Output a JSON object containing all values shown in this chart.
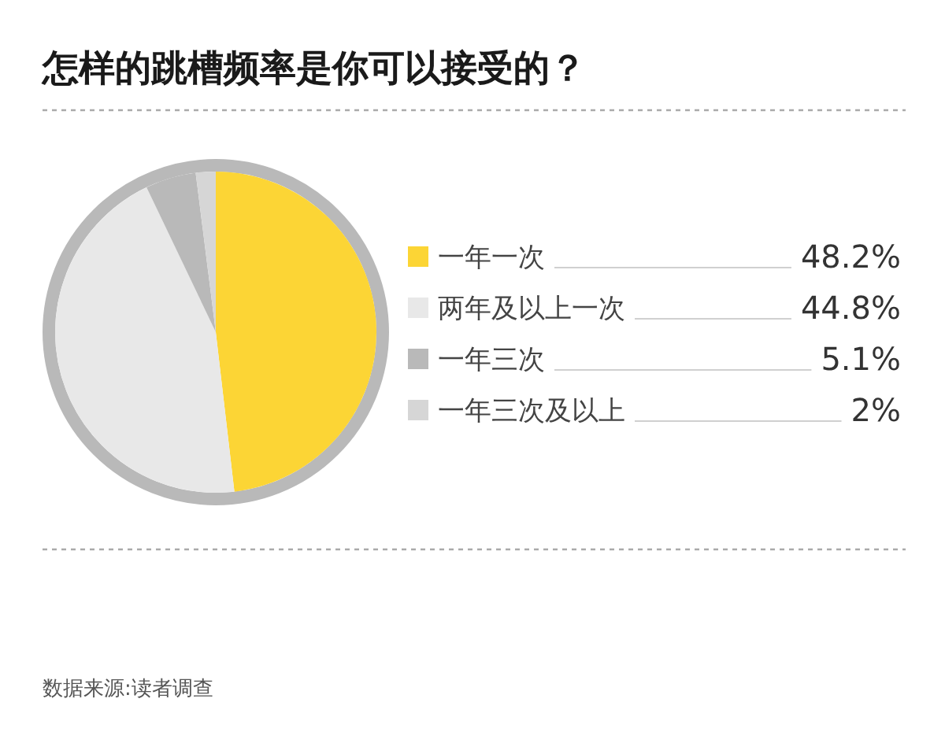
{
  "chart_data": {
    "type": "pie",
    "title": "怎样的跳槽频率是你可以接受的？",
    "categories": [
      "一年一次",
      "两年及以上一次",
      "一年三次",
      "一年三次及以上"
    ],
    "values": [
      48.2,
      44.8,
      5.1,
      2
    ],
    "colors": [
      "#fcd535",
      "#e8e8e8",
      "#b9b9b9",
      "#d6d6d6"
    ],
    "value_labels": [
      "48.2%",
      "44.8%",
      "5.1%",
      "2%"
    ],
    "legend": "right",
    "annotations": [
      "数据来源:读者调查"
    ]
  }
}
